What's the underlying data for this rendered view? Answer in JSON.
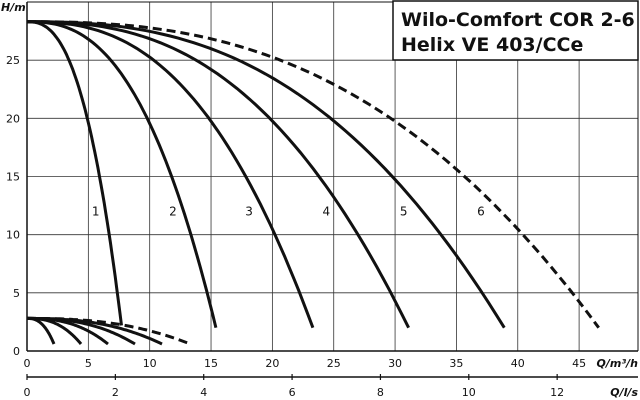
{
  "chart_data": {
    "type": "line",
    "title": [
      "Wilo-Comfort COR 2-6",
      "Helix VE 403/CCe"
    ],
    "ylabel": "H/m",
    "xlabel": "Q/m³/h",
    "x2label": "Q/l/s",
    "xlim": [
      0,
      49.8
    ],
    "ylim": [
      0,
      30
    ],
    "x2lim": [
      0,
      13.83
    ],
    "xticks": [
      "0",
      "5",
      "10",
      "15",
      "20",
      "25",
      "30",
      "35",
      "40",
      "45"
    ],
    "xtick_values": [
      0,
      5,
      10,
      15,
      20,
      25,
      30,
      35,
      40,
      45
    ],
    "yticks": [
      "0",
      "5",
      "10",
      "15",
      "20",
      "25"
    ],
    "ytick_values": [
      0,
      5,
      10,
      15,
      20,
      25
    ],
    "x2ticks": [
      "0",
      "2",
      "4",
      "6",
      "8",
      "10",
      "12"
    ],
    "x2tick_values": [
      0,
      2,
      4,
      6,
      8,
      10,
      12
    ],
    "grid": true,
    "series": [
      {
        "name": "1",
        "h_start": 28.3,
        "q_end": 7.7,
        "h_end": 2.2,
        "dashed": false,
        "label_at": [
          5.6,
          12
        ]
      },
      {
        "name": "2",
        "h_start": 28.3,
        "q_end": 15.4,
        "h_end": 2.0,
        "dashed": false,
        "label_at": [
          11.9,
          12
        ]
      },
      {
        "name": "3",
        "h_start": 28.3,
        "q_end": 23.3,
        "h_end": 2.0,
        "dashed": false,
        "label_at": [
          18.1,
          12
        ]
      },
      {
        "name": "4",
        "h_start": 28.3,
        "q_end": 31.1,
        "h_end": 2.0,
        "dashed": false,
        "label_at": [
          24.4,
          12
        ]
      },
      {
        "name": "5",
        "h_start": 28.3,
        "q_end": 38.9,
        "h_end": 2.0,
        "dashed": false,
        "label_at": [
          30.7,
          12
        ]
      },
      {
        "name": "6",
        "h_start": 28.3,
        "q_end": 46.6,
        "h_end": 2.0,
        "dashed": true,
        "label_at": [
          37.0,
          12
        ]
      }
    ],
    "low_series": [
      {
        "h_start": 2.8,
        "q_end": 2.2,
        "h_end": 0.6,
        "dashed": false
      },
      {
        "h_start": 2.8,
        "q_end": 4.4,
        "h_end": 0.6,
        "dashed": false
      },
      {
        "h_start": 2.8,
        "q_end": 6.6,
        "h_end": 0.6,
        "dashed": false
      },
      {
        "h_start": 2.8,
        "q_end": 8.8,
        "h_end": 0.6,
        "dashed": false
      },
      {
        "h_start": 2.8,
        "q_end": 11.0,
        "h_end": 0.6,
        "dashed": false
      },
      {
        "h_start": 2.8,
        "q_end": 13.3,
        "h_end": 0.6,
        "dashed": true
      }
    ]
  }
}
